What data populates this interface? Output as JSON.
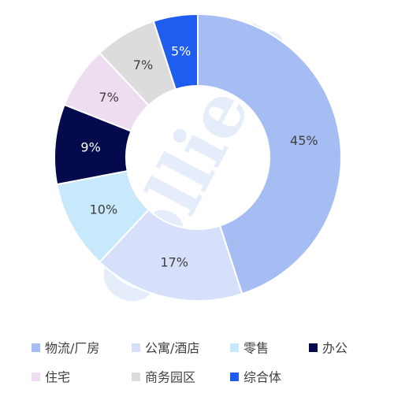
{
  "chart_data": {
    "type": "pie",
    "donut": true,
    "start": "top, clockwise",
    "categories": [
      "物流/厂房",
      "公寓/酒店",
      "零售",
      "办公",
      "住宅",
      "商务园区",
      "综合体"
    ],
    "values": [
      45,
      17,
      10,
      9,
      7,
      7,
      5
    ],
    "data_labels": [
      "45%",
      "17%",
      "10%",
      "9%",
      "7%",
      "7%",
      "5%"
    ],
    "colors": [
      "#a6bdf3",
      "#d6e0fa",
      "#c8e8fb",
      "#050a4d",
      "#eedcf0",
      "#dcdcdc",
      "#1f5cf0"
    ],
    "label_colors": [
      "#404040",
      "#404040",
      "#404040",
      "#ffffff",
      "#404040",
      "#404040",
      "#ffffff"
    ],
    "legend_placement": "bottom",
    "legend_rows": [
      [
        "物流/厂房",
        "公寓/酒店",
        "零售",
        "办公"
      ],
      [
        "住宅",
        "商务园区",
        "综合体"
      ]
    ],
    "watermark": "Colliers"
  }
}
